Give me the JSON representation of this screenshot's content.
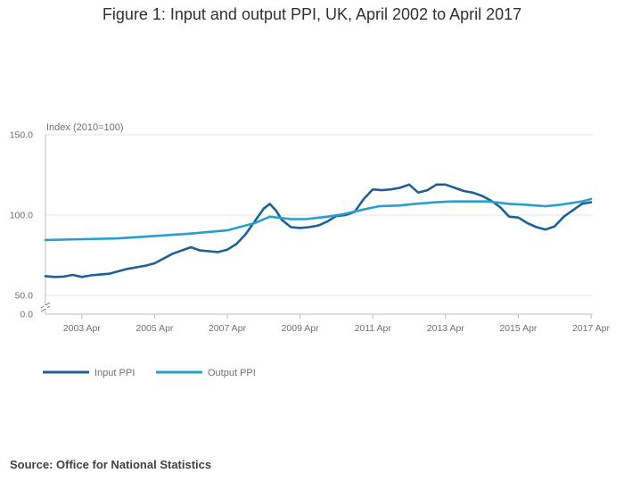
{
  "chart_data": {
    "type": "line",
    "title": "Figure 1: Input and output PPI, UK, April 2002 to April 2017",
    "ylabel": "Index (2010=100)",
    "ylim": [
      0,
      150
    ],
    "y_ticks": [
      "0.0",
      "50.0",
      "100.0",
      "150.0"
    ],
    "y_axis_break": true,
    "x_ticks": [
      "2003 Apr",
      "2005 Apr",
      "2007 Apr",
      "2009 Apr",
      "2011 Apr",
      "2013 Apr",
      "2015 Apr",
      "2017 Apr"
    ],
    "x_range": [
      "2002-04",
      "2017-04"
    ],
    "grid": true,
    "legend_position": "bottom-left",
    "series": [
      {
        "name": "Input PPI",
        "color": "#206095",
        "points": [
          [
            "2002-04",
            62
          ],
          [
            "2002-07",
            61.5
          ],
          [
            "2002-10",
            61.7
          ],
          [
            "2003-01",
            62.8
          ],
          [
            "2003-04",
            61.5
          ],
          [
            "2003-07",
            62.5
          ],
          [
            "2003-10",
            63
          ],
          [
            "2004-01",
            63.5
          ],
          [
            "2004-04",
            65
          ],
          [
            "2004-07",
            66.5
          ],
          [
            "2004-10",
            67.5
          ],
          [
            "2005-01",
            68.5
          ],
          [
            "2005-04",
            70
          ],
          [
            "2005-07",
            73
          ],
          [
            "2005-10",
            76
          ],
          [
            "2006-01",
            78
          ],
          [
            "2006-04",
            80
          ],
          [
            "2006-07",
            78
          ],
          [
            "2006-10",
            77.5
          ],
          [
            "2007-01",
            77
          ],
          [
            "2007-04",
            78.5
          ],
          [
            "2007-07",
            82
          ],
          [
            "2007-10",
            88
          ],
          [
            "2008-01",
            96
          ],
          [
            "2008-04",
            104
          ],
          [
            "2008-06",
            107
          ],
          [
            "2008-08",
            103
          ],
          [
            "2008-10",
            97
          ],
          [
            "2009-01",
            92.5
          ],
          [
            "2009-04",
            92
          ],
          [
            "2009-07",
            92.5
          ],
          [
            "2009-10",
            93.5
          ],
          [
            "2010-01",
            96
          ],
          [
            "2010-04",
            99.5
          ],
          [
            "2010-07",
            100
          ],
          [
            "2010-10",
            102
          ],
          [
            "2011-01",
            110
          ],
          [
            "2011-04",
            116
          ],
          [
            "2011-07",
            115.5
          ],
          [
            "2011-10",
            116
          ],
          [
            "2012-01",
            117
          ],
          [
            "2012-04",
            119
          ],
          [
            "2012-07",
            114
          ],
          [
            "2012-10",
            115.5
          ],
          [
            "2013-01",
            119
          ],
          [
            "2013-04",
            119
          ],
          [
            "2013-07",
            117
          ],
          [
            "2013-10",
            115
          ],
          [
            "2014-01",
            114
          ],
          [
            "2014-04",
            112
          ],
          [
            "2014-07",
            109
          ],
          [
            "2014-10",
            105
          ],
          [
            "2015-01",
            99
          ],
          [
            "2015-04",
            98.5
          ],
          [
            "2015-07",
            95
          ],
          [
            "2015-10",
            92.5
          ],
          [
            "2016-01",
            91
          ],
          [
            "2016-04",
            93
          ],
          [
            "2016-07",
            99
          ],
          [
            "2016-10",
            103
          ],
          [
            "2017-01",
            107
          ],
          [
            "2017-04",
            108
          ]
        ]
      },
      {
        "name": "Output PPI",
        "color": "#27a0cc",
        "points": [
          [
            "2002-04",
            84.5
          ],
          [
            "2003-04",
            85
          ],
          [
            "2004-04",
            85.5
          ],
          [
            "2005-04",
            87
          ],
          [
            "2006-04",
            88.5
          ],
          [
            "2007-04",
            90.5
          ],
          [
            "2008-01",
            95
          ],
          [
            "2008-06",
            99
          ],
          [
            "2009-01",
            97.5
          ],
          [
            "2009-06",
            97.5
          ],
          [
            "2010-01",
            99
          ],
          [
            "2010-06",
            100.5
          ],
          [
            "2011-01",
            103.5
          ],
          [
            "2011-06",
            105.5
          ],
          [
            "2012-01",
            106
          ],
          [
            "2012-06",
            107
          ],
          [
            "2013-01",
            108
          ],
          [
            "2013-06",
            108.5
          ],
          [
            "2014-01",
            108.5
          ],
          [
            "2014-06",
            108.5
          ],
          [
            "2015-01",
            107
          ],
          [
            "2015-06",
            106.5
          ],
          [
            "2016-01",
            105.5
          ],
          [
            "2016-06",
            106.5
          ],
          [
            "2017-01",
            108.5
          ],
          [
            "2017-04",
            110
          ]
        ]
      }
    ],
    "source_label": "Source:",
    "source_text": "Office for National Statistics"
  }
}
